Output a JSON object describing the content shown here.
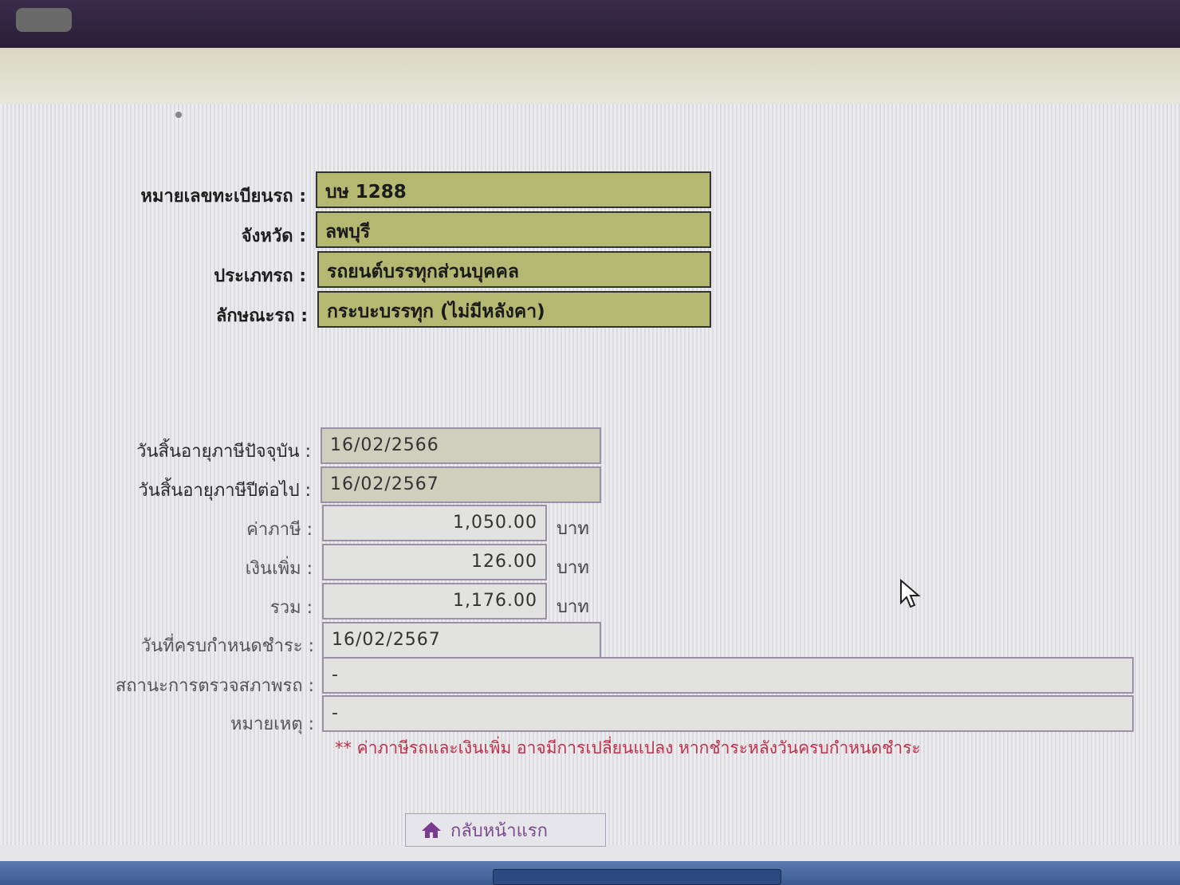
{
  "vehicle": {
    "plate_label": "หมายเลขทะเบียนรถ :",
    "plate_value": "บษ 1288",
    "province_label": "จังหวัด :",
    "province_value": "ลพบุรี",
    "type_label": "ประเภทรถ :",
    "type_value": "รถยนต์บรรทุกส่วนบุคคล",
    "style_label": "ลักษณะรถ :",
    "style_value": "กระบะบรรทุก (ไม่มีหลังคา)"
  },
  "tax": {
    "current_expiry_label": "วันสิ้นอายุภาษีปัจจุบัน :",
    "current_expiry_value": "16/02/2566",
    "next_expiry_label": "วันสิ้นอายุภาษีปีต่อไป :",
    "next_expiry_value": "16/02/2567",
    "tax_label": "ค่าภาษี :",
    "tax_value": "1,050.00",
    "surcharge_label": "เงินเพิ่ม :",
    "surcharge_value": "126.00",
    "total_label": "รวม :",
    "total_value": "1,176.00",
    "unit": "บาท",
    "due_label": "วันที่ครบกำหนดชำระ :",
    "due_value": "16/02/2567",
    "inspection_label": "สถานะการตรวจสภาพรถ :",
    "inspection_value": "-",
    "remark_label": "หมายเหตุ :",
    "remark_value": "-"
  },
  "note": "** ค่าภาษีรถและเงินเพิ่ม อาจมีการเปลี่ยนแปลง หากชำระหลังวันครบกำหนดชำระ",
  "home_button": "กลับหน้าแรก",
  "colors": {
    "highlight_field": "#b4b870",
    "note": "#c0304a",
    "header": "#2a1e38"
  }
}
